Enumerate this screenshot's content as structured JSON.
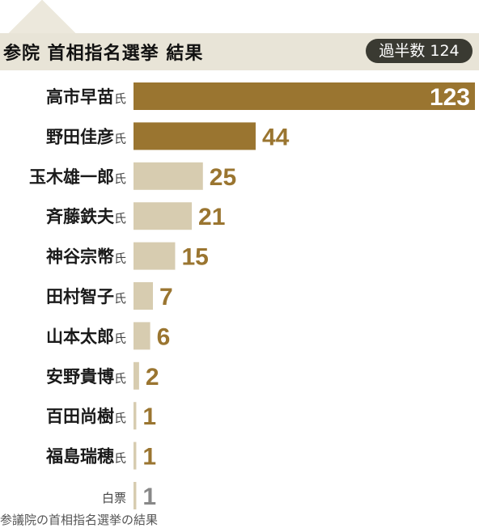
{
  "header": {
    "title": "参院 首相指名選挙 結果",
    "majority_badge": "過半数 124"
  },
  "footnote": "参議院の首相指名選挙の結果",
  "colors": {
    "leading": "#9a7530",
    "other": "#d7ccb0",
    "value_text": "#9a7530",
    "blank_value_text": "#888888",
    "header_band": "#e8e4d7",
    "badge": "#3a3a32"
  },
  "chart_data": {
    "type": "bar",
    "orientation": "horizontal",
    "title": "参院 首相指名選挙 結果",
    "majority": 124,
    "suffix": "氏",
    "categories": [
      "高市早苗",
      "野田佳彦",
      "玉木雄一郎",
      "斉藤鉄夫",
      "神谷宗幣",
      "田村智子",
      "山本太郎",
      "安野貴博",
      "百田尚樹",
      "福島瑞穂",
      "白票"
    ],
    "values": [
      123,
      44,
      25,
      21,
      15,
      7,
      6,
      2,
      1,
      1,
      1
    ],
    "has_suffix": [
      true,
      true,
      true,
      true,
      true,
      true,
      true,
      true,
      true,
      true,
      false
    ],
    "highlight": [
      true,
      true,
      false,
      false,
      false,
      false,
      false,
      false,
      false,
      false,
      false
    ],
    "xlim": [
      0,
      123
    ],
    "grid": false,
    "legend": "none"
  }
}
